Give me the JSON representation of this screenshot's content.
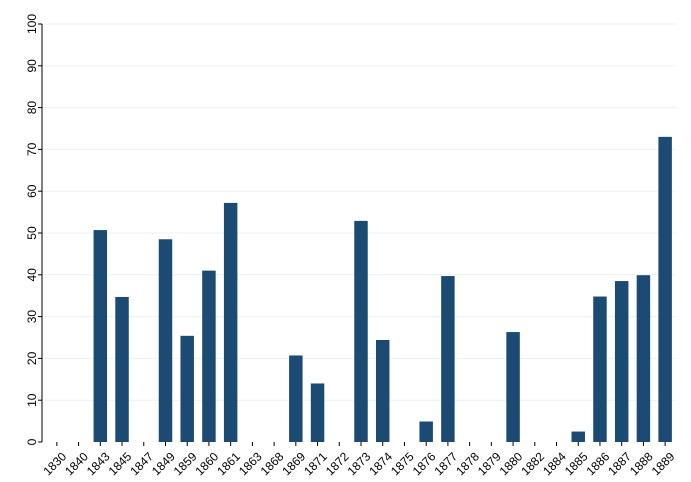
{
  "chart_data": {
    "type": "bar",
    "title": "",
    "xlabel": "",
    "ylabel": "",
    "ylim": [
      0,
      100
    ],
    "yticks": [
      0,
      10,
      20,
      30,
      40,
      50,
      60,
      70,
      80,
      90,
      100
    ],
    "grid": true,
    "bar_color": "#1b4a72",
    "categories": [
      "1830",
      "1840",
      "1843",
      "1845",
      "1847",
      "1849",
      "1859",
      "1860",
      "1861",
      "1863",
      "1868",
      "1869",
      "1871",
      "1872",
      "1873",
      "1874",
      "1875",
      "1876",
      "1877",
      "1878",
      "1879",
      "1880",
      "1882",
      "1884",
      "1885",
      "1886",
      "1887",
      "1888",
      "1889"
    ],
    "values": [
      0,
      0,
      50.7,
      34.7,
      0,
      48.5,
      25.4,
      41.0,
      57.2,
      0,
      0,
      20.7,
      14.0,
      0,
      52.9,
      24.4,
      0,
      4.9,
      39.7,
      0,
      0,
      26.3,
      0,
      0,
      2.5,
      34.8,
      38.5,
      39.9,
      73.0
    ]
  }
}
